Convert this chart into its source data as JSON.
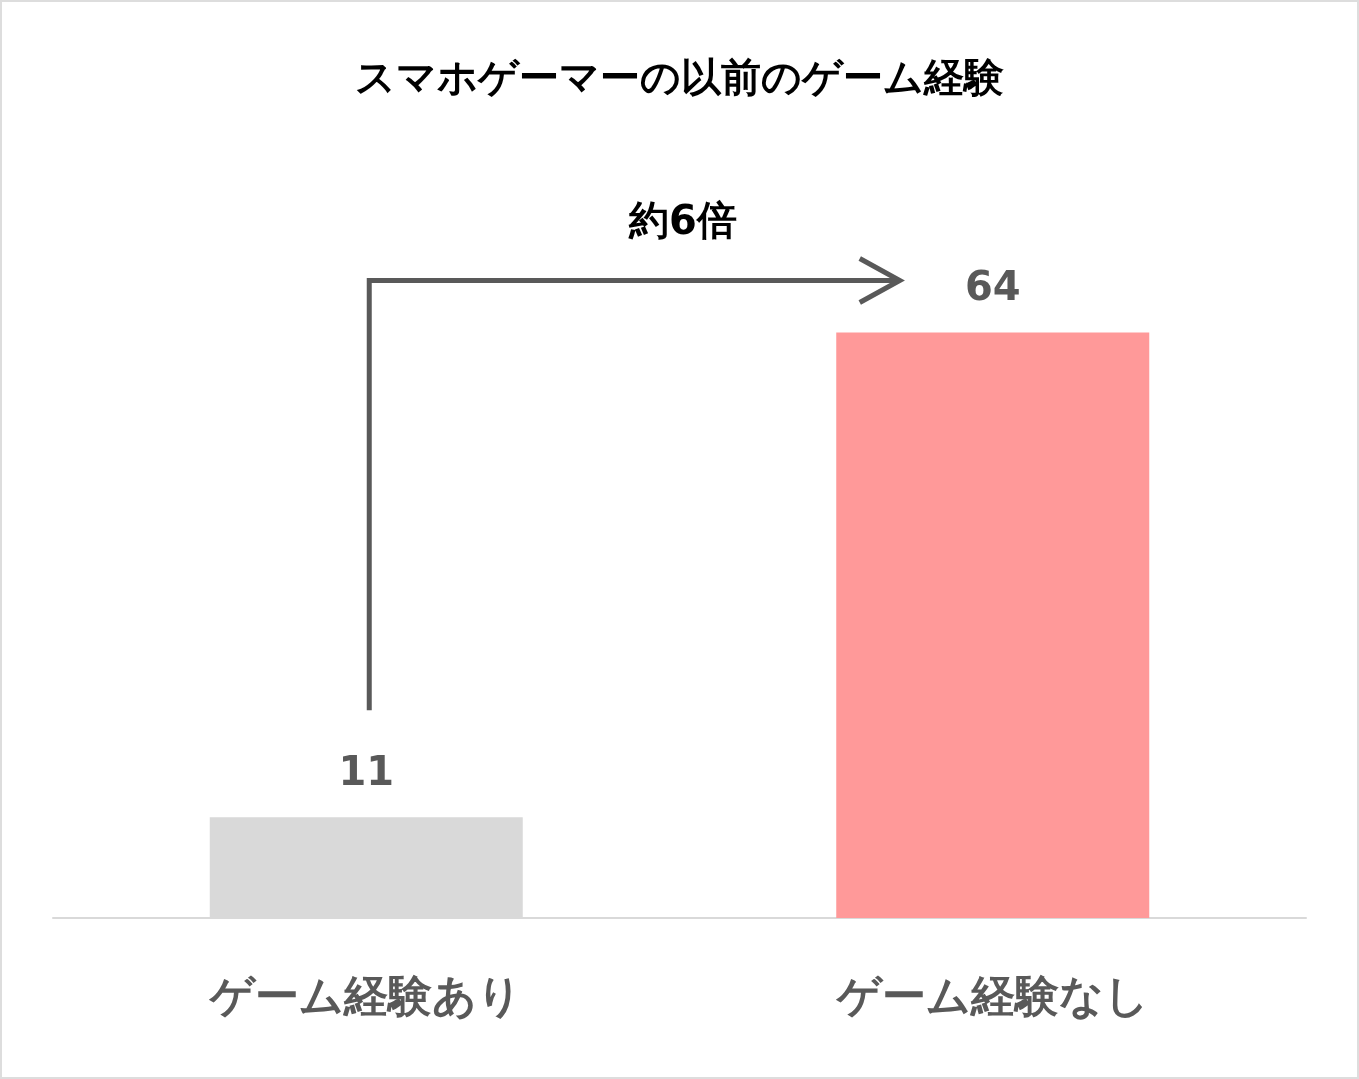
{
  "chart_data": {
    "type": "bar",
    "title": "スマホゲーマーの以前のゲーム経験",
    "categories": [
      "ゲーム経験あり",
      "ゲーム経験なし"
    ],
    "values": [
      11,
      64
    ],
    "colors": [
      "#d9d9d9",
      "#ff9999"
    ],
    "data_labels": true,
    "annotations": [
      "約6倍"
    ]
  }
}
